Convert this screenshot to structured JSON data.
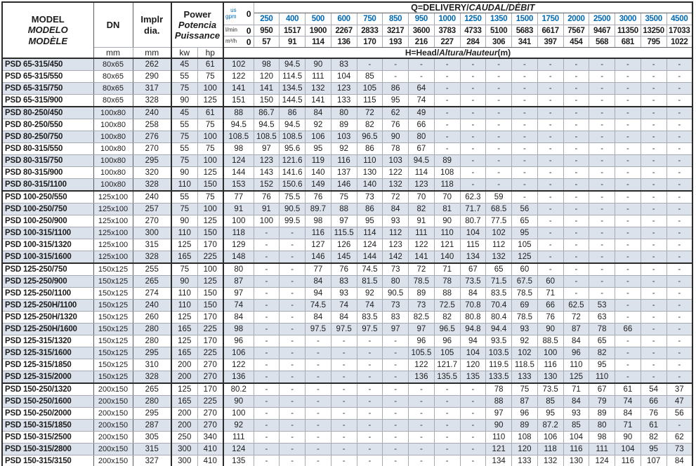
{
  "colors": {
    "accent_blue": "#0069b4",
    "row_shade": "#dbe2ec"
  },
  "table": {
    "header": {
      "model": {
        "l1": "MODEL",
        "l2": "MODELO",
        "l3": "MODÈLE"
      },
      "dn": "DN",
      "implr": {
        "l1": "Implr",
        "l2": "dia."
      },
      "power": {
        "l1": "Power",
        "l2": "Potencia",
        "l3": "Puissance"
      },
      "mm": "mm",
      "kw": "kw",
      "hp": "hp",
      "q_title": {
        "pre": "Q=DELIVERY/",
        "italic": "CAUDAL/DÉBIT"
      },
      "h_title": {
        "pre": "H=Head/",
        "italic": "Altura/Hauteur",
        "suffix": "(m)"
      },
      "flow_rows": [
        {
          "id": "gpm",
          "label_top": "us",
          "label_bottom": "gpm",
          "zero": "0",
          "values": [
            "250",
            "400",
            "500",
            "600",
            "750",
            "850",
            "950",
            "1000",
            "1250",
            "1350",
            "1500",
            "1750",
            "2000",
            "2500",
            "3000",
            "3500",
            "4500"
          ]
        },
        {
          "id": "lmin",
          "label": "l/min",
          "zero": "0",
          "values": [
            "950",
            "1517",
            "1900",
            "2267",
            "2833",
            "3217",
            "3600",
            "3783",
            "4733",
            "5100",
            "5683",
            "6617",
            "7567",
            "9467",
            "11350",
            "13250",
            "17033"
          ]
        },
        {
          "id": "m3h",
          "label": "m³/h",
          "zero": "0",
          "values": [
            "57",
            "91",
            "114",
            "136",
            "170",
            "193",
            "216",
            "227",
            "284",
            "306",
            "341",
            "397",
            "454",
            "568",
            "681",
            "795",
            "1022"
          ]
        }
      ]
    },
    "group_end_rows": [
      3,
      10,
      16,
      26
    ],
    "rows": [
      {
        "model": "PSD 65-315/450",
        "dn": "80x65",
        "implr": "262",
        "kw": "45",
        "hp": "61",
        "heads": [
          "102",
          "98",
          "94.5",
          "90",
          "83",
          "-",
          "-",
          "-",
          "-",
          "-",
          "-",
          "-",
          "-",
          "-",
          "-",
          "-",
          "-",
          "-"
        ]
      },
      {
        "model": "PSD 65-315/550",
        "dn": "80x65",
        "implr": "290",
        "kw": "55",
        "hp": "75",
        "heads": [
          "122",
          "120",
          "114.5",
          "111",
          "104",
          "85",
          "-",
          "-",
          "-",
          "-",
          "-",
          "-",
          "-",
          "-",
          "-",
          "-",
          "-",
          "-"
        ]
      },
      {
        "model": "PSD 65-315/750",
        "dn": "80x65",
        "implr": "317",
        "kw": "75",
        "hp": "100",
        "heads": [
          "141",
          "141",
          "134.5",
          "132",
          "123",
          "105",
          "86",
          "64",
          "-",
          "-",
          "-",
          "-",
          "-",
          "-",
          "-",
          "-",
          "-",
          "-"
        ]
      },
      {
        "model": "PSD 65-315/900",
        "dn": "80x65",
        "implr": "328",
        "kw": "90",
        "hp": "125",
        "heads": [
          "151",
          "150",
          "144.5",
          "141",
          "133",
          "115",
          "95",
          "74",
          "-",
          "-",
          "-",
          "-",
          "-",
          "-",
          "-",
          "-",
          "-",
          "-"
        ]
      },
      {
        "model": "PSD 80-250/450",
        "dn": "100x80",
        "implr": "240",
        "kw": "45",
        "hp": "61",
        "heads": [
          "88",
          "86.7",
          "86",
          "84",
          "80",
          "72",
          "62",
          "49",
          "-",
          "-",
          "-",
          "-",
          "-",
          "-",
          "-",
          "-",
          "-",
          "-"
        ]
      },
      {
        "model": "PSD 80-250/550",
        "dn": "100x80",
        "implr": "258",
        "kw": "55",
        "hp": "75",
        "heads": [
          "94.5",
          "94.5",
          "94.5",
          "92",
          "89",
          "82",
          "76",
          "66",
          "-",
          "-",
          "-",
          "-",
          "-",
          "-",
          "-",
          "-",
          "-",
          "-"
        ]
      },
      {
        "model": "PSD 80-250/750",
        "dn": "100x80",
        "implr": "276",
        "kw": "75",
        "hp": "100",
        "heads": [
          "108.5",
          "108.5",
          "108.5",
          "106",
          "103",
          "96.5",
          "90",
          "80",
          "-",
          "-",
          "-",
          "-",
          "-",
          "-",
          "-",
          "-",
          "-",
          "-"
        ]
      },
      {
        "model": "PSD 80-315/550",
        "dn": "100x80",
        "implr": "270",
        "kw": "55",
        "hp": "75",
        "heads": [
          "98",
          "97",
          "95.6",
          "95",
          "92",
          "86",
          "78",
          "67",
          "-",
          "-",
          "-",
          "-",
          "-",
          "-",
          "-",
          "-",
          "-",
          "-"
        ]
      },
      {
        "model": "PSD 80-315/750",
        "dn": "100x80",
        "implr": "295",
        "kw": "75",
        "hp": "100",
        "heads": [
          "124",
          "123",
          "121.6",
          "119",
          "116",
          "110",
          "103",
          "94.5",
          "89",
          "-",
          "-",
          "-",
          "-",
          "-",
          "-",
          "-",
          "-",
          "-"
        ]
      },
      {
        "model": "PSD 80-315/900",
        "dn": "100x80",
        "implr": "320",
        "kw": "90",
        "hp": "125",
        "heads": [
          "144",
          "143",
          "141.6",
          "140",
          "137",
          "130",
          "122",
          "114",
          "108",
          "-",
          "-",
          "-",
          "-",
          "-",
          "-",
          "-",
          "-",
          "-"
        ]
      },
      {
        "model": "PSD 80-315/1100",
        "dn": "100x80",
        "implr": "328",
        "kw": "110",
        "hp": "150",
        "heads": [
          "153",
          "152",
          "150.6",
          "149",
          "146",
          "140",
          "132",
          "123",
          "118",
          "-",
          "-",
          "-",
          "-",
          "-",
          "-",
          "-",
          "-",
          "-"
        ]
      },
      {
        "model": "PSD 100-250/550",
        "dn": "125x100",
        "implr": "240",
        "kw": "55",
        "hp": "75",
        "heads": [
          "77",
          "76",
          "75.5",
          "76",
          "75",
          "73",
          "72",
          "70",
          "70",
          "62.3",
          "59",
          "-",
          "-",
          "-",
          "-",
          "-",
          "-",
          "-"
        ]
      },
      {
        "model": "PSD 100-250/750",
        "dn": "125x100",
        "implr": "257",
        "kw": "75",
        "hp": "100",
        "heads": [
          "91",
          "91",
          "90.5",
          "89.7",
          "88",
          "86",
          "84",
          "82",
          "81",
          "71.7",
          "68.5",
          "56",
          "-",
          "-",
          "-",
          "-",
          "-",
          "-"
        ]
      },
      {
        "model": "PSD 100-250/900",
        "dn": "125x100",
        "implr": "270",
        "kw": "90",
        "hp": "125",
        "heads": [
          "100",
          "100",
          "99.5",
          "98",
          "97",
          "95",
          "93",
          "91",
          "90",
          "80.7",
          "77.5",
          "65",
          "-",
          "-",
          "-",
          "-",
          "-",
          "-"
        ]
      },
      {
        "model": "PSD 100-315/1100",
        "dn": "125x100",
        "implr": "300",
        "kw": "110",
        "hp": "150",
        "heads": [
          "118",
          "-",
          "-",
          "116",
          "115.5",
          "114",
          "112",
          "111",
          "110",
          "104",
          "102",
          "95",
          "-",
          "-",
          "-",
          "-",
          "-",
          "-"
        ]
      },
      {
        "model": "PSD 100-315/1320",
        "dn": "125x100",
        "implr": "315",
        "kw": "125",
        "hp": "170",
        "heads": [
          "129",
          "-",
          "-",
          "127",
          "126",
          "124",
          "123",
          "122",
          "121",
          "115",
          "112",
          "105",
          "-",
          "-",
          "-",
          "-",
          "-",
          "-"
        ]
      },
      {
        "model": "PSD 100-315/1600",
        "dn": "125x100",
        "implr": "328",
        "kw": "165",
        "hp": "225",
        "heads": [
          "148",
          "-",
          "-",
          "146",
          "145",
          "144",
          "142",
          "141",
          "140",
          "134",
          "132",
          "125",
          "-",
          "-",
          "-",
          "-",
          "-",
          "-"
        ]
      },
      {
        "model": "PSD 125-250/750",
        "dn": "150x125",
        "implr": "255",
        "kw": "75",
        "hp": "100",
        "heads": [
          "80",
          "-",
          "-",
          "77",
          "76",
          "74.5",
          "73",
          "72",
          "71",
          "67",
          "65",
          "60",
          "-",
          "-",
          "-",
          "-",
          "-",
          "-"
        ]
      },
      {
        "model": "PSD 125-250/900",
        "dn": "150x125",
        "implr": "265",
        "kw": "90",
        "hp": "125",
        "heads": [
          "87",
          "-",
          "-",
          "84",
          "83",
          "81.5",
          "80",
          "78.5",
          "78",
          "73.5",
          "71.5",
          "67.5",
          "60",
          "-",
          "-",
          "-",
          "-",
          "-"
        ]
      },
      {
        "model": "PSD 125-250/1100",
        "dn": "150x125",
        "implr": "274",
        "kw": "110",
        "hp": "150",
        "heads": [
          "97",
          "-",
          "-",
          "94",
          "93",
          "92",
          "90.5",
          "89",
          "88",
          "84",
          "83.5",
          "78.5",
          "71",
          "-",
          "-",
          "-",
          "-",
          "-"
        ]
      },
      {
        "model": "PSD 125-250H/1100",
        "dn": "150x125",
        "implr": "240",
        "kw": "110",
        "hp": "150",
        "heads": [
          "74",
          "-",
          "-",
          "74.5",
          "74",
          "74",
          "73",
          "73",
          "72.5",
          "70.8",
          "70.4",
          "69",
          "66",
          "62.5",
          "53",
          "-",
          "-",
          "-"
        ]
      },
      {
        "model": "PSD 125-250H/1320",
        "dn": "150x125",
        "implr": "260",
        "kw": "125",
        "hp": "170",
        "heads": [
          "84",
          "-",
          "-",
          "84",
          "84",
          "83.5",
          "83",
          "82.5",
          "82",
          "80.8",
          "80.4",
          "78.5",
          "76",
          "72",
          "63",
          "-",
          "-",
          "-"
        ]
      },
      {
        "model": "PSD 125-250H/1600",
        "dn": "150x125",
        "implr": "280",
        "kw": "165",
        "hp": "225",
        "heads": [
          "98",
          "-",
          "-",
          "97.5",
          "97.5",
          "97.5",
          "97",
          "97",
          "96.5",
          "94.8",
          "94.4",
          "93",
          "90",
          "87",
          "78",
          "66",
          "-",
          "-"
        ]
      },
      {
        "model": "PSD 125-315/1320",
        "dn": "150x125",
        "implr": "280",
        "kw": "125",
        "hp": "170",
        "heads": [
          "96",
          "-",
          "-",
          "-",
          "-",
          "-",
          "-",
          "96",
          "96",
          "94",
          "93.5",
          "92",
          "88.5",
          "84",
          "65",
          "-",
          "-",
          "-"
        ]
      },
      {
        "model": "PSD 125-315/1600",
        "dn": "150x125",
        "implr": "295",
        "kw": "165",
        "hp": "225",
        "heads": [
          "106",
          "-",
          "-",
          "-",
          "-",
          "-",
          "-",
          "105.5",
          "105",
          "104",
          "103.5",
          "102",
          "100",
          "96",
          "82",
          "-",
          "-",
          "-"
        ]
      },
      {
        "model": "PSD 125-315/1850",
        "dn": "150x125",
        "implr": "310",
        "kw": "200",
        "hp": "270",
        "heads": [
          "122",
          "-",
          "-",
          "-",
          "-",
          "-",
          "-",
          "122",
          "121.7",
          "120",
          "119.5",
          "118.5",
          "116",
          "110",
          "95",
          "-",
          "-",
          "-"
        ]
      },
      {
        "model": "PSD 125-315/2000",
        "dn": "150x125",
        "implr": "328",
        "kw": "200",
        "hp": "270",
        "heads": [
          "136",
          "-",
          "-",
          "-",
          "-",
          "-",
          "-",
          "136",
          "135.5",
          "135",
          "133.5",
          "133",
          "130",
          "125",
          "110",
          "-",
          "-",
          "-"
        ]
      },
      {
        "model": "PSD 150-250/1320",
        "dn": "200x150",
        "implr": "265",
        "kw": "125",
        "hp": "170",
        "heads": [
          "80.2",
          "-",
          "-",
          "-",
          "-",
          "-",
          "-",
          "-",
          "-",
          "-",
          "78",
          "75",
          "73.5",
          "71",
          "67",
          "61",
          "54",
          "37"
        ]
      },
      {
        "model": "PSD 150-250/1600",
        "dn": "200x150",
        "implr": "280",
        "kw": "165",
        "hp": "225",
        "heads": [
          "90",
          "-",
          "-",
          "-",
          "-",
          "-",
          "-",
          "-",
          "-",
          "-",
          "88",
          "87",
          "85",
          "84",
          "79",
          "74",
          "66",
          "47"
        ]
      },
      {
        "model": "PSD 150-250/2000",
        "dn": "200x150",
        "implr": "295",
        "kw": "200",
        "hp": "270",
        "heads": [
          "100",
          "-",
          "-",
          "-",
          "-",
          "-",
          "-",
          "-",
          "-",
          "-",
          "97",
          "96",
          "95",
          "93",
          "89",
          "84",
          "76",
          "56"
        ]
      },
      {
        "model": "PSD 150-315/1850",
        "dn": "200x150",
        "implr": "287",
        "kw": "200",
        "hp": "270",
        "heads": [
          "92",
          "-",
          "-",
          "-",
          "-",
          "-",
          "-",
          "-",
          "-",
          "-",
          "90",
          "89",
          "87.2",
          "85",
          "80",
          "71",
          "61",
          "-"
        ]
      },
      {
        "model": "PSD 150-315/2500",
        "dn": "200x150",
        "implr": "305",
        "kw": "250",
        "hp": "340",
        "heads": [
          "111",
          "-",
          "-",
          "-",
          "-",
          "-",
          "-",
          "-",
          "-",
          "-",
          "110",
          "108",
          "106",
          "104",
          "98",
          "90",
          "82",
          "62"
        ]
      },
      {
        "model": "PSD 150-315/2800",
        "dn": "200x150",
        "implr": "315",
        "kw": "300",
        "hp": "410",
        "heads": [
          "124",
          "-",
          "-",
          "-",
          "-",
          "-",
          "-",
          "-",
          "-",
          "-",
          "121",
          "120",
          "118",
          "116",
          "111",
          "104",
          "95",
          "73"
        ]
      },
      {
        "model": "PSD 150-315/3150",
        "dn": "200x150",
        "implr": "327",
        "kw": "300",
        "hp": "410",
        "heads": [
          "135",
          "-",
          "-",
          "-",
          "-",
          "-",
          "-",
          "-",
          "-",
          "-",
          "134",
          "133",
          "132",
          "130",
          "124",
          "116",
          "107",
          "84"
        ]
      }
    ]
  }
}
